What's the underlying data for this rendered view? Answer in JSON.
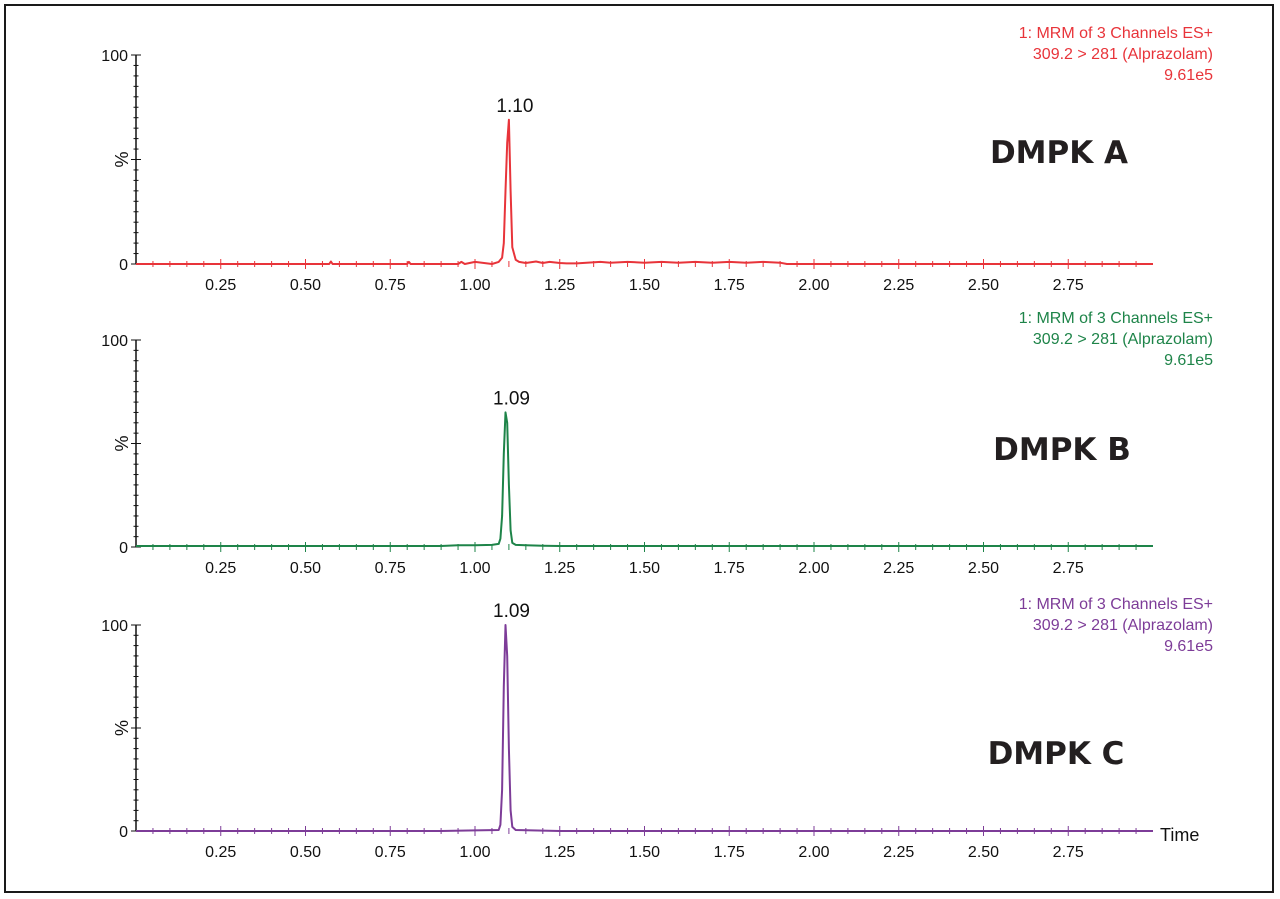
{
  "chart_data": [
    {
      "type": "line",
      "title": "DMPK A",
      "color": "#e8343a",
      "channel_lines": [
        "1: MRM of 3 Channels ES+",
        "309.2 > 281 (Alprazolam)",
        "9.61e5"
      ],
      "peak": {
        "x": 1.1,
        "y": 69,
        "label": "1.10"
      },
      "xlim": [
        0,
        3.0
      ],
      "ylim": [
        0,
        100
      ],
      "xticks": [
        "0.25",
        "0.50",
        "0.75",
        "1.00",
        "1.25",
        "1.50",
        "1.75",
        "2.00",
        "2.25",
        "2.50",
        "2.75"
      ],
      "yticks": [
        "0",
        "100"
      ],
      "ylabel": "%",
      "xlabel": "",
      "series": [
        {
          "x": [
            0,
            0.57,
            0.575,
            0.58,
            0.8,
            0.805,
            0.81,
            0.95,
            0.96,
            0.97,
            1.0,
            1.05,
            1.07,
            1.08,
            1.085,
            1.09,
            1.095,
            1.1,
            1.105,
            1.11,
            1.12,
            1.13,
            1.15,
            1.18,
            1.2,
            1.22,
            1.25,
            1.27,
            1.3,
            1.37,
            1.4,
            1.45,
            1.5,
            1.55,
            1.6,
            1.65,
            1.7,
            1.75,
            1.8,
            1.85,
            1.9,
            1.92,
            2.0,
            3.0
          ],
          "y": [
            0,
            0,
            1.2,
            0,
            0,
            1.0,
            0,
            0,
            1.0,
            0,
            1.0,
            0,
            1.0,
            3,
            10,
            35,
            58,
            69,
            35,
            8,
            2,
            1,
            0.5,
            1.2,
            0.5,
            1.0,
            0.5,
            0.3,
            0.3,
            1.0,
            0.6,
            1.0,
            0.6,
            1.0,
            0.6,
            1.0,
            0.6,
            1.0,
            0.6,
            1.0,
            0.6,
            0,
            0,
            0
          ]
        }
      ]
    },
    {
      "type": "line",
      "title": "DMPK B",
      "color": "#1e8449",
      "channel_lines": [
        "1: MRM of 3 Channels ES+",
        "309.2 > 281 (Alprazolam)",
        "9.61e5"
      ],
      "peak": {
        "x": 1.09,
        "y": 65,
        "label": "1.09"
      },
      "xlim": [
        0,
        3.0
      ],
      "ylim": [
        0,
        100
      ],
      "xticks": [
        "0.25",
        "0.50",
        "0.75",
        "1.00",
        "1.25",
        "1.50",
        "1.75",
        "2.00",
        "2.25",
        "2.50",
        "2.75"
      ],
      "yticks": [
        "0",
        "100"
      ],
      "ylabel": "%",
      "xlabel": "",
      "series": [
        {
          "x": [
            0,
            0.9,
            0.95,
            1.0,
            1.05,
            1.07,
            1.075,
            1.08,
            1.085,
            1.09,
            1.095,
            1.1,
            1.105,
            1.11,
            1.12,
            1.15,
            1.2,
            1.25,
            3.0
          ],
          "y": [
            0.5,
            0.5,
            0.8,
            0.8,
            1.0,
            1.5,
            4,
            15,
            45,
            65,
            60,
            30,
            8,
            2,
            1,
            0.8,
            0.6,
            0.5,
            0.5
          ]
        }
      ]
    },
    {
      "type": "line",
      "title": "DMPK C",
      "color": "#7d3c98",
      "channel_lines": [
        "1: MRM of 3 Channels ES+",
        "309.2 > 281 (Alprazolam)",
        "9.61e5"
      ],
      "peak": {
        "x": 1.09,
        "y": 100,
        "label": "1.09"
      },
      "xlim": [
        0,
        3.0
      ],
      "ylim": [
        0,
        100
      ],
      "xticks": [
        "0.25",
        "0.50",
        "0.75",
        "1.00",
        "1.25",
        "1.50",
        "1.75",
        "2.00",
        "2.25",
        "2.50",
        "2.75"
      ],
      "yticks": [
        "0",
        "100"
      ],
      "ylabel": "%",
      "xlabel": "Time",
      "series": [
        {
          "x": [
            0,
            0.9,
            1.0,
            1.07,
            1.075,
            1.08,
            1.085,
            1.09,
            1.095,
            1.1,
            1.105,
            1.11,
            1.12,
            1.2,
            1.25,
            3.0
          ],
          "y": [
            0,
            0,
            0.3,
            0.5,
            3,
            20,
            70,
            100,
            85,
            40,
            10,
            2,
            0.5,
            0.2,
            0,
            0
          ]
        }
      ]
    }
  ]
}
